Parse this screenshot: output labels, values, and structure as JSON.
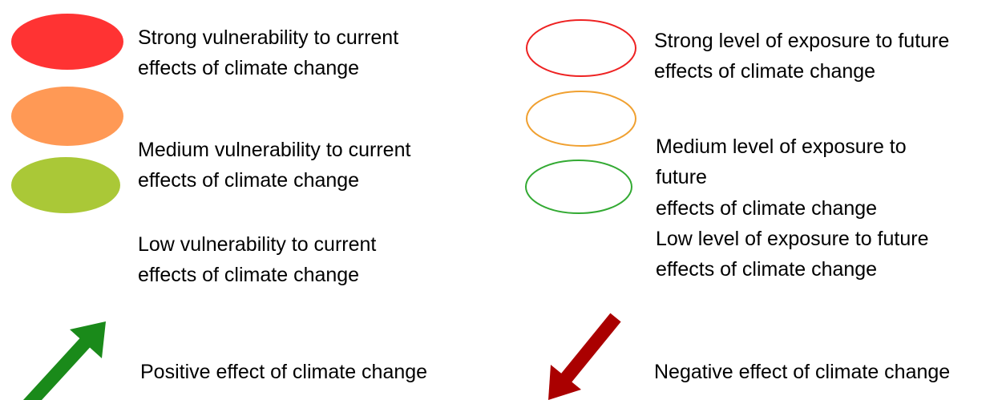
{
  "left": [
    {
      "lines": [
        "Strong vulnerability to current",
        "effects of climate change"
      ]
    },
    {
      "lines": [
        "Medium vulnerability to current",
        "effects of climate change"
      ]
    },
    {
      "lines": [
        "Low vulnerability to current",
        "effects of climate change"
      ]
    }
  ],
  "right": [
    {
      "lines": [
        "Strong level of exposure to future",
        "effects of climate change"
      ]
    },
    {
      "lines": [
        "Medium level of exposure to",
        "future",
        "effects of climate change"
      ]
    },
    {
      "lines": [
        "Low level of exposure to future",
        "effects of climate change"
      ]
    }
  ],
  "arrows": [
    {
      "label": "Positive effect of climate change"
    },
    {
      "label": "Negative effect of climate change"
    }
  ]
}
